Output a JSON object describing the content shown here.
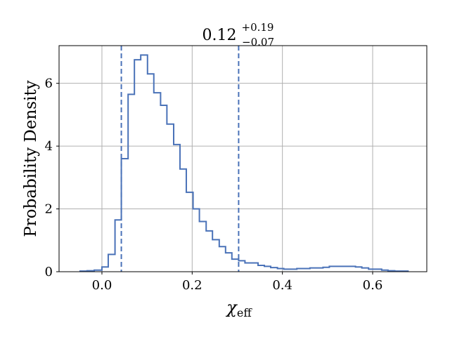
{
  "chart_data": {
    "type": "step-histogram",
    "title_main": "0.12",
    "title_sup": "+0.19",
    "title_sub": "−0.07",
    "xlabel_symbol": "χ",
    "xlabel_sub": "eff",
    "ylabel": "Probability Density",
    "xlim": [
      -0.095,
      0.72
    ],
    "ylim": [
      0,
      7.2
    ],
    "xticks": [
      0.0,
      0.2,
      0.4,
      0.6
    ],
    "xtick_labels": [
      "0.0",
      "0.2",
      "0.4",
      "0.6"
    ],
    "yticks": [
      0,
      2,
      4,
      6
    ],
    "ytick_labels": [
      "0",
      "2",
      "4",
      "6"
    ],
    "grid": true,
    "color": "#4a72b8",
    "bin_edges": [
      -0.05,
      -0.033,
      -0.017,
      0.0,
      0.014,
      0.029,
      0.043,
      0.058,
      0.072,
      0.086,
      0.101,
      0.115,
      0.13,
      0.144,
      0.159,
      0.173,
      0.187,
      0.202,
      0.216,
      0.231,
      0.245,
      0.26,
      0.274,
      0.288,
      0.303,
      0.317,
      0.346,
      0.36,
      0.374,
      0.389,
      0.403,
      0.432,
      0.461,
      0.49,
      0.504,
      0.519,
      0.562,
      0.576,
      0.591,
      0.62,
      0.634,
      0.649,
      0.68
    ],
    "density": [
      0.02,
      0.03,
      0.05,
      0.15,
      0.55,
      1.65,
      3.6,
      5.65,
      6.75,
      6.9,
      6.3,
      5.7,
      5.3,
      4.7,
      4.05,
      3.27,
      2.53,
      2.0,
      1.6,
      1.3,
      1.02,
      0.8,
      0.6,
      0.4,
      0.35,
      0.28,
      0.2,
      0.17,
      0.13,
      0.1,
      0.08,
      0.1,
      0.12,
      0.14,
      0.17,
      0.17,
      0.15,
      0.12,
      0.08,
      0.05,
      0.03,
      0.02
    ],
    "credible_interval": [
      0.043,
      0.303
    ]
  }
}
